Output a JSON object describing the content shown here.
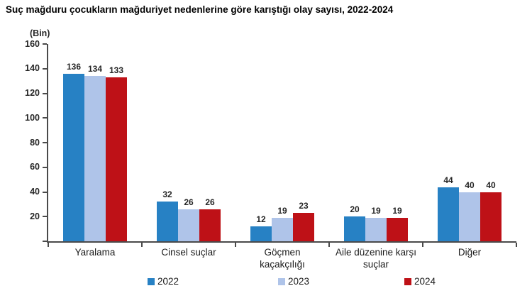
{
  "title": "Suç mağduru çocukların mağduriyet nedenlerine göre karıştığı olay sayısı, 2022-2024",
  "unit_label": "(Bin)",
  "colors": {
    "series_2022": "#2781C4",
    "series_2023": "#AFC4E9",
    "series_2024": "#BE1117",
    "axis": "#4A4A4A",
    "text": "#262626"
  },
  "y_axis": {
    "min": 0,
    "max": 160,
    "step": 20,
    "tick_labels": [
      "160",
      "140",
      "120",
      "100",
      "80",
      "60",
      "40",
      "20"
    ]
  },
  "chart_data": {
    "type": "bar",
    "title": "Suç mağduru çocukların mağduriyet nedenlerine göre karıştığı olay sayısı, 2022-2024",
    "unit": "Bin",
    "categories": [
      "Yaralama",
      "Cinsel suçlar",
      "Göçmen\nkaçakçılığı",
      "Aile düzenine karşı\nsuçlar",
      "Diğer"
    ],
    "series": [
      {
        "name": "2022",
        "color": "#2781C4",
        "values": [
          136,
          32,
          12,
          20,
          44
        ]
      },
      {
        "name": "2023",
        "color": "#AFC4E9",
        "values": [
          134,
          26,
          19,
          19,
          40
        ]
      },
      {
        "name": "2024",
        "color": "#BE1117",
        "values": [
          133,
          26,
          23,
          19,
          40
        ]
      }
    ],
    "ylim": [
      0,
      160
    ],
    "grid": false,
    "legend_position": "bottom",
    "data_labels": true
  },
  "legend": {
    "items": [
      "2022",
      "2023",
      "2024"
    ]
  }
}
